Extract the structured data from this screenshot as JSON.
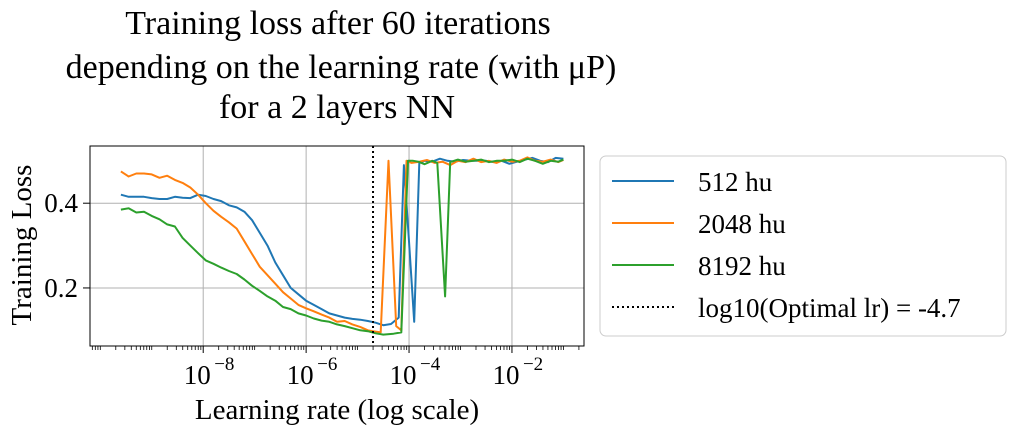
{
  "chart_data": {
    "type": "line",
    "title": [
      "Training loss after 60 iterations",
      "depending on the learning rate (with μP)",
      "for a 2 layers NN"
    ],
    "xlabel": "Learning rate (log scale)",
    "ylabel": "Training Loss",
    "xscale": "log",
    "xlim_log10": [
      -10.2,
      -0.6
    ],
    "ylim": [
      0.063,
      0.535
    ],
    "yticks": [
      0.2,
      0.4
    ],
    "ytick_labels": [
      "0.2",
      "0.4"
    ],
    "xticks_log10": [
      -8,
      -6,
      -4,
      -2
    ],
    "xtick_labels": [
      {
        "base": "10",
        "exp": "−8"
      },
      {
        "base": "10",
        "exp": "−6"
      },
      {
        "base": "10",
        "exp": "−4"
      },
      {
        "base": "10",
        "exp": "−2"
      }
    ],
    "grid": true,
    "legend_placement": "outside right",
    "series": [
      {
        "name": "512 hu",
        "color": "#1f77b4",
        "points": [
          [
            -9.6,
            0.42
          ],
          [
            -9.45,
            0.415
          ],
          [
            -9.3,
            0.415
          ],
          [
            -9.15,
            0.415
          ],
          [
            -9.0,
            0.412
          ],
          [
            -8.85,
            0.41
          ],
          [
            -8.7,
            0.41
          ],
          [
            -8.55,
            0.415
          ],
          [
            -8.4,
            0.413
          ],
          [
            -8.25,
            0.412
          ],
          [
            -8.1,
            0.42
          ],
          [
            -7.95,
            0.417
          ],
          [
            -7.8,
            0.41
          ],
          [
            -7.65,
            0.405
          ],
          [
            -7.5,
            0.395
          ],
          [
            -7.35,
            0.39
          ],
          [
            -7.2,
            0.38
          ],
          [
            -7.05,
            0.36
          ],
          [
            -6.9,
            0.33
          ],
          [
            -6.75,
            0.3
          ],
          [
            -6.6,
            0.26
          ],
          [
            -6.45,
            0.23
          ],
          [
            -6.3,
            0.2
          ],
          [
            -6.15,
            0.185
          ],
          [
            -6.0,
            0.17
          ],
          [
            -5.85,
            0.16
          ],
          [
            -5.7,
            0.15
          ],
          [
            -5.55,
            0.14
          ],
          [
            -5.4,
            0.135
          ],
          [
            -5.25,
            0.13
          ],
          [
            -5.1,
            0.127
          ],
          [
            -4.95,
            0.125
          ],
          [
            -4.8,
            0.122
          ],
          [
            -4.65,
            0.118
          ],
          [
            -4.5,
            0.112
          ],
          [
            -4.35,
            0.115
          ],
          [
            -4.2,
            0.13
          ],
          [
            -4.1,
            0.49
          ],
          [
            -4.0,
            0.31
          ],
          [
            -3.9,
            0.12
          ],
          [
            -3.8,
            0.495
          ],
          [
            -3.7,
            0.5
          ],
          [
            -3.55,
            0.498
          ],
          [
            -3.4,
            0.505
          ],
          [
            -3.25,
            0.5
          ],
          [
            -3.1,
            0.498
          ],
          [
            -2.95,
            0.502
          ],
          [
            -2.8,
            0.5
          ],
          [
            -2.65,
            0.5
          ],
          [
            -2.5,
            0.5
          ],
          [
            -2.35,
            0.497
          ],
          [
            -2.2,
            0.5
          ],
          [
            -2.05,
            0.493
          ],
          [
            -1.9,
            0.498
          ],
          [
            -1.75,
            0.503
          ],
          [
            -1.6,
            0.507
          ],
          [
            -1.45,
            0.5
          ],
          [
            -1.3,
            0.497
          ],
          [
            -1.15,
            0.507
          ],
          [
            -1.0,
            0.505
          ]
        ]
      },
      {
        "name": "2048 hu",
        "color": "#ff7f0e",
        "points": [
          [
            -9.6,
            0.475
          ],
          [
            -9.45,
            0.463
          ],
          [
            -9.3,
            0.47
          ],
          [
            -9.15,
            0.47
          ],
          [
            -9.0,
            0.468
          ],
          [
            -8.85,
            0.46
          ],
          [
            -8.7,
            0.465
          ],
          [
            -8.55,
            0.455
          ],
          [
            -8.4,
            0.448
          ],
          [
            -8.25,
            0.437
          ],
          [
            -8.1,
            0.42
          ],
          [
            -7.95,
            0.4
          ],
          [
            -7.8,
            0.382
          ],
          [
            -7.65,
            0.368
          ],
          [
            -7.5,
            0.355
          ],
          [
            -7.35,
            0.34
          ],
          [
            -7.2,
            0.31
          ],
          [
            -7.05,
            0.28
          ],
          [
            -6.9,
            0.25
          ],
          [
            -6.75,
            0.23
          ],
          [
            -6.6,
            0.21
          ],
          [
            -6.45,
            0.19
          ],
          [
            -6.3,
            0.175
          ],
          [
            -6.15,
            0.16
          ],
          [
            -6.0,
            0.152
          ],
          [
            -5.85,
            0.145
          ],
          [
            -5.7,
            0.137
          ],
          [
            -5.55,
            0.13
          ],
          [
            -5.4,
            0.12
          ],
          [
            -5.25,
            0.122
          ],
          [
            -5.1,
            0.114
          ],
          [
            -4.95,
            0.108
          ],
          [
            -4.8,
            0.1
          ],
          [
            -4.7,
            0.098
          ],
          [
            -4.55,
            0.095
          ],
          [
            -4.4,
            0.5
          ],
          [
            -4.25,
            0.11
          ],
          [
            -4.15,
            0.1
          ],
          [
            -4.05,
            0.5
          ],
          [
            -3.95,
            0.495
          ],
          [
            -3.8,
            0.498
          ],
          [
            -3.65,
            0.502
          ],
          [
            -3.5,
            0.495
          ],
          [
            -3.35,
            0.498
          ],
          [
            -3.2,
            0.49
          ],
          [
            -3.05,
            0.5
          ],
          [
            -2.9,
            0.497
          ],
          [
            -2.75,
            0.505
          ],
          [
            -2.6,
            0.497
          ],
          [
            -2.45,
            0.5
          ],
          [
            -2.3,
            0.495
          ],
          [
            -2.15,
            0.503
          ],
          [
            -2.0,
            0.498
          ],
          [
            -1.85,
            0.5
          ],
          [
            -1.7,
            0.508
          ],
          [
            -1.55,
            0.5
          ],
          [
            -1.4,
            0.498
          ],
          [
            -1.25,
            0.503
          ],
          [
            -1.1,
            0.497
          ],
          [
            -1.0,
            0.502
          ]
        ]
      },
      {
        "name": "8192 hu",
        "color": "#2ca02c",
        "points": [
          [
            -9.6,
            0.385
          ],
          [
            -9.45,
            0.388
          ],
          [
            -9.3,
            0.378
          ],
          [
            -9.15,
            0.38
          ],
          [
            -9.0,
            0.37
          ],
          [
            -8.85,
            0.362
          ],
          [
            -8.7,
            0.35
          ],
          [
            -8.55,
            0.345
          ],
          [
            -8.4,
            0.318
          ],
          [
            -8.25,
            0.3
          ],
          [
            -8.1,
            0.282
          ],
          [
            -7.95,
            0.265
          ],
          [
            -7.8,
            0.257
          ],
          [
            -7.65,
            0.248
          ],
          [
            -7.5,
            0.24
          ],
          [
            -7.35,
            0.233
          ],
          [
            -7.2,
            0.22
          ],
          [
            -7.05,
            0.205
          ],
          [
            -6.9,
            0.193
          ],
          [
            -6.75,
            0.18
          ],
          [
            -6.6,
            0.17
          ],
          [
            -6.45,
            0.155
          ],
          [
            -6.3,
            0.15
          ],
          [
            -6.15,
            0.14
          ],
          [
            -6.0,
            0.135
          ],
          [
            -5.85,
            0.128
          ],
          [
            -5.7,
            0.123
          ],
          [
            -5.55,
            0.12
          ],
          [
            -5.4,
            0.114
          ],
          [
            -5.25,
            0.11
          ],
          [
            -5.1,
            0.105
          ],
          [
            -4.95,
            0.1
          ],
          [
            -4.8,
            0.098
          ],
          [
            -4.65,
            0.093
          ],
          [
            -4.5,
            0.09
          ],
          [
            -4.3,
            0.092
          ],
          [
            -4.15,
            0.095
          ],
          [
            -4.02,
            0.5
          ],
          [
            -3.92,
            0.5
          ],
          [
            -3.82,
            0.498
          ],
          [
            -3.7,
            0.492
          ],
          [
            -3.55,
            0.5
          ],
          [
            -3.45,
            0.495
          ],
          [
            -3.3,
            0.18
          ],
          [
            -3.2,
            0.497
          ],
          [
            -3.05,
            0.503
          ],
          [
            -2.9,
            0.498
          ],
          [
            -2.75,
            0.5
          ],
          [
            -2.6,
            0.503
          ],
          [
            -2.45,
            0.497
          ],
          [
            -2.3,
            0.5
          ],
          [
            -2.15,
            0.5
          ],
          [
            -2.0,
            0.503
          ],
          [
            -1.85,
            0.497
          ],
          [
            -1.7,
            0.505
          ],
          [
            -1.55,
            0.5
          ],
          [
            -1.4,
            0.493
          ],
          [
            -1.25,
            0.5
          ],
          [
            -1.1,
            0.498
          ],
          [
            -1.0,
            0.503
          ]
        ]
      }
    ],
    "vline": {
      "name": "log10(Optimal lr) = -4.7",
      "x_log10": -4.7,
      "color": "#000000",
      "style": "dotted"
    }
  }
}
